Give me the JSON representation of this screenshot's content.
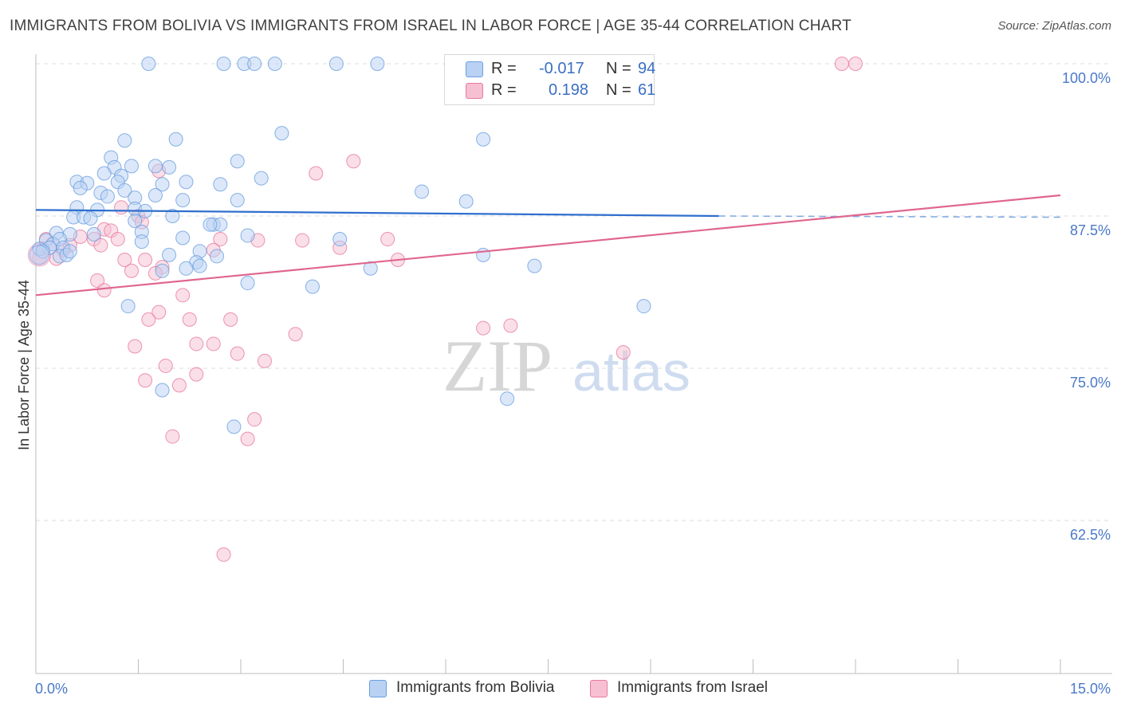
{
  "title": "IMMIGRANTS FROM BOLIVIA VS IMMIGRANTS FROM ISRAEL IN LABOR FORCE | AGE 35-44 CORRELATION CHART",
  "source": "Source: ZipAtlas.com",
  "watermark": {
    "zip": "ZIP",
    "atlas": "atlas"
  },
  "colors": {
    "bolivia": "#6a9fe0",
    "bolivia_fill": "#b9d1f3",
    "israel": "#e9799f",
    "israel_fill": "#f6c0d2",
    "axis_text": "#4a79c9"
  },
  "legend_top": {
    "rows": [
      {
        "series": "bolivia",
        "r_label": "R =",
        "r_value": "-0.017",
        "n_label": "N =",
        "n_value": "94"
      },
      {
        "series": "israel",
        "r_label": "R =",
        "r_value": "0.198",
        "n_label": "N =",
        "n_value": "61"
      }
    ]
  },
  "legend_bottom": [
    {
      "series": "bolivia",
      "label": "Immigrants from Bolivia"
    },
    {
      "series": "israel",
      "label": "Immigrants from Israel"
    }
  ],
  "chart_data": {
    "type": "scatter",
    "title": "IMMIGRANTS FROM BOLIVIA VS IMMIGRANTS FROM ISRAEL IN LABOR FORCE | AGE 35-44 CORRELATION CHART",
    "xlabel": "",
    "ylabel": "In Labor Force | Age 35-44",
    "xlim": [
      0,
      15
    ],
    "ylim": [
      50,
      100
    ],
    "x_tick_labels": [
      "0.0%",
      "15.0%"
    ],
    "y_ticks": [
      100,
      87.5,
      75,
      62.5
    ],
    "y_tick_labels": [
      "100.0%",
      "87.5%",
      "75.0%",
      "62.5%"
    ],
    "grid": true,
    "legend_position": "top-center",
    "series": [
      {
        "name": "Immigrants from Bolivia",
        "color": "#6a9fe0",
        "r": -0.017,
        "n": 94,
        "trend": {
          "x": [
            0.0,
            10.0
          ],
          "y": [
            88.0,
            87.5
          ],
          "dashed_extension_to": [
            15.0,
            87.4
          ]
        },
        "points": [
          [
            1.65,
            100
          ],
          [
            2.75,
            100
          ],
          [
            3.05,
            100
          ],
          [
            3.2,
            100
          ],
          [
            3.5,
            100
          ],
          [
            4.4,
            100
          ],
          [
            5.0,
            100
          ],
          [
            3.6,
            94.3
          ],
          [
            6.55,
            93.8
          ],
          [
            1.3,
            93.7
          ],
          [
            2.05,
            93.8
          ],
          [
            1.1,
            92.3
          ],
          [
            1.15,
            91.5
          ],
          [
            1.4,
            91.6
          ],
          [
            1.75,
            91.6
          ],
          [
            1.95,
            91.5
          ],
          [
            1.0,
            91.0
          ],
          [
            2.95,
            92
          ],
          [
            1.25,
            90.8
          ],
          [
            0.6,
            90.3
          ],
          [
            0.75,
            90.2
          ],
          [
            1.2,
            90.3
          ],
          [
            1.85,
            90.1
          ],
          [
            2.2,
            90.3
          ],
          [
            3.3,
            90.6
          ],
          [
            2.7,
            90.1
          ],
          [
            0.65,
            89.8
          ],
          [
            1.3,
            89.6
          ],
          [
            0.95,
            89.4
          ],
          [
            1.05,
            89.1
          ],
          [
            1.45,
            89.0
          ],
          [
            1.75,
            89.2
          ],
          [
            2.15,
            88.8
          ],
          [
            2.95,
            88.8
          ],
          [
            5.65,
            89.5
          ],
          [
            6.3,
            88.7
          ],
          [
            0.6,
            88.2
          ],
          [
            0.9,
            88.0
          ],
          [
            1.45,
            88.1
          ],
          [
            1.6,
            87.9
          ],
          [
            0.55,
            87.4
          ],
          [
            0.7,
            87.4
          ],
          [
            0.8,
            87.3
          ],
          [
            1.45,
            87.1
          ],
          [
            2.0,
            87.5
          ],
          [
            2.6,
            86.8
          ],
          [
            2.7,
            86.8
          ],
          [
            2.55,
            86.8
          ],
          [
            0.3,
            86.1
          ],
          [
            0.5,
            86.0
          ],
          [
            0.85,
            86.0
          ],
          [
            1.55,
            86.2
          ],
          [
            1.55,
            85.4
          ],
          [
            2.15,
            85.7
          ],
          [
            3.1,
            85.9
          ],
          [
            4.45,
            85.6
          ],
          [
            0.15,
            85.5
          ],
          [
            0.25,
            85.2
          ],
          [
            0.35,
            85.6
          ],
          [
            0.2,
            84.9
          ],
          [
            0.4,
            84.9
          ],
          [
            0.05,
            84.8
          ],
          [
            0.1,
            84.6
          ],
          [
            0.35,
            84.2
          ],
          [
            0.45,
            84.3
          ],
          [
            0.5,
            84.6
          ],
          [
            1.95,
            84.3
          ],
          [
            2.4,
            84.6
          ],
          [
            2.65,
            84.2
          ],
          [
            2.35,
            83.7
          ],
          [
            1.85,
            83.0
          ],
          [
            2.2,
            83.2
          ],
          [
            2.4,
            83.4
          ],
          [
            4.9,
            83.2
          ],
          [
            6.55,
            84.3
          ],
          [
            7.3,
            83.4
          ],
          [
            3.1,
            82.0
          ],
          [
            4.05,
            81.7
          ],
          [
            1.35,
            80.1
          ],
          [
            8.9,
            80.1
          ],
          [
            1.85,
            73.2
          ],
          [
            6.9,
            72.5
          ],
          [
            2.9,
            70.2
          ]
        ]
      },
      {
        "name": "Immigrants from Israel",
        "color": "#e9799f",
        "r": 0.198,
        "n": 61,
        "trend": {
          "x": [
            0.0,
            15.0
          ],
          "y": [
            81.0,
            89.2
          ]
        },
        "points": [
          [
            11.8,
            100
          ],
          [
            12.0,
            100
          ],
          [
            4.65,
            92.0
          ],
          [
            4.1,
            91.0
          ],
          [
            1.8,
            91.2
          ],
          [
            1.25,
            88.2
          ],
          [
            1.0,
            86.4
          ],
          [
            1.1,
            86.3
          ],
          [
            1.2,
            85.6
          ],
          [
            0.65,
            85.8
          ],
          [
            0.85,
            85.6
          ],
          [
            0.5,
            85.1
          ],
          [
            0.15,
            85.6
          ],
          [
            0.25,
            85.2
          ],
          [
            0.4,
            84.7
          ],
          [
            0.1,
            84.8
          ],
          [
            0.3,
            84.0
          ],
          [
            0.95,
            85.1
          ],
          [
            2.7,
            85.6
          ],
          [
            3.25,
            85.5
          ],
          [
            3.9,
            85.5
          ],
          [
            4.45,
            84.9
          ],
          [
            5.15,
            85.6
          ],
          [
            0.05,
            84.1
          ],
          [
            1.3,
            83.9
          ],
          [
            1.6,
            83.9
          ],
          [
            1.85,
            83.3
          ],
          [
            2.6,
            84.7
          ],
          [
            5.3,
            83.9
          ],
          [
            1.4,
            83.0
          ],
          [
            1.75,
            82.8
          ],
          [
            1.5,
            87.5
          ],
          [
            1.55,
            87.0
          ],
          [
            0.9,
            82.2
          ],
          [
            1.0,
            81.4
          ],
          [
            2.15,
            81.0
          ],
          [
            1.8,
            79.6
          ],
          [
            1.65,
            79.0
          ],
          [
            2.25,
            79.0
          ],
          [
            2.85,
            79.0
          ],
          [
            6.55,
            78.3
          ],
          [
            6.95,
            78.5
          ],
          [
            3.8,
            77.8
          ],
          [
            1.45,
            76.8
          ],
          [
            2.35,
            77.0
          ],
          [
            2.6,
            77.0
          ],
          [
            2.95,
            76.2
          ],
          [
            3.35,
            75.6
          ],
          [
            1.9,
            75.2
          ],
          [
            8.6,
            76.3
          ],
          [
            1.6,
            74.0
          ],
          [
            2.35,
            74.5
          ],
          [
            2.1,
            73.6
          ],
          [
            3.2,
            70.8
          ],
          [
            2.0,
            69.4
          ],
          [
            3.1,
            69.2
          ],
          [
            2.75,
            59.7
          ]
        ]
      }
    ]
  }
}
